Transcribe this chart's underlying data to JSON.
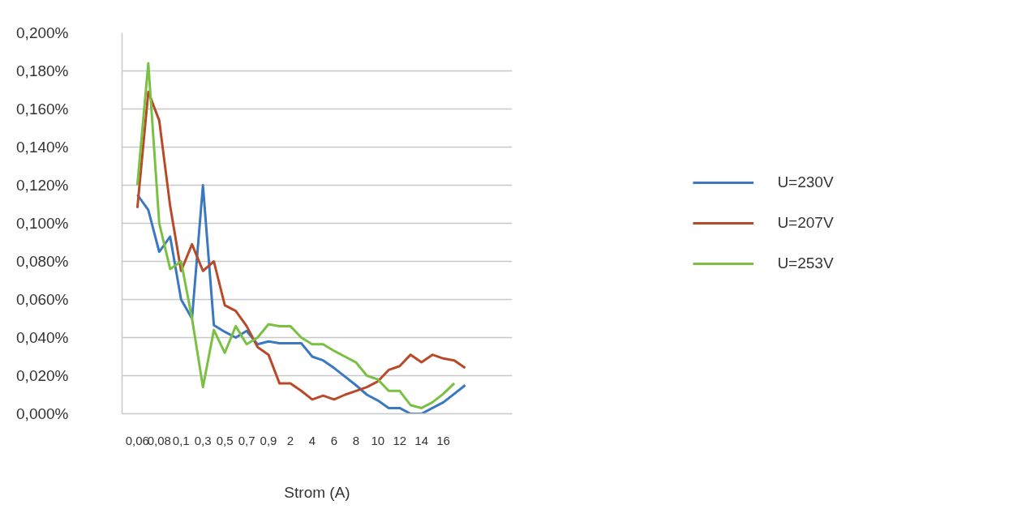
{
  "chart_data": {
    "type": "line",
    "xlabel": "Strom (A)",
    "ylim": [
      0,
      0.2
    ],
    "categories": [
      "0,06",
      null,
      "0,08",
      null,
      "0,1",
      null,
      "0,3",
      null,
      "0,5",
      null,
      "0,7",
      null,
      "0,9",
      null,
      "2",
      null,
      "4",
      null,
      "6",
      null,
      "8",
      null,
      "10",
      null,
      "12",
      null,
      "14",
      null,
      "16",
      null,
      null
    ],
    "yticks": [
      {
        "value": 0,
        "label": "0,000%"
      },
      {
        "value": 0.02,
        "label": "0,020%"
      },
      {
        "value": 0.04,
        "label": "0,040%"
      },
      {
        "value": 0.06,
        "label": "0,060%"
      },
      {
        "value": 0.08,
        "label": "0,080%"
      },
      {
        "value": 0.1,
        "label": "0,100%"
      },
      {
        "value": 0.12,
        "label": "0,120%"
      },
      {
        "value": 0.14,
        "label": "0,140%"
      },
      {
        "value": 0.16,
        "label": "0,160%"
      },
      {
        "value": 0.18,
        "label": "0,180%"
      },
      {
        "value": 0.2,
        "label": "0,200%"
      }
    ],
    "grid": "y",
    "legend": "right",
    "marker": "none",
    "line_style": "solid",
    "series": [
      {
        "name": "U=230V",
        "color": "#3a78c0",
        "values": [
          0.115,
          0.107,
          0.085,
          0.093,
          0.06,
          0.05,
          0.12,
          0.0465,
          0.043,
          0.04,
          0.0435,
          0.0365,
          0.038,
          0.037,
          0.037,
          0.037,
          0.03,
          0.028,
          0.024,
          0.0195,
          0.015,
          0.01,
          0.007,
          0.003,
          0.003,
          0,
          0,
          0.003,
          0.006,
          0.0105,
          0.015
        ]
      },
      {
        "name": "U=207V",
        "color": "#b84a2a",
        "values": [
          0.108,
          0.169,
          0.154,
          0.109,
          0.075,
          0.089,
          0.075,
          0.08,
          0.057,
          0.054,
          0.046,
          0.035,
          0.031,
          0.016,
          0.016,
          0.012,
          0.0075,
          0.0095,
          0.0075,
          0.01,
          0.012,
          0.014,
          0.017,
          0.023,
          0.025,
          0.031,
          0.027,
          0.031,
          0.029,
          0.028,
          0.024
        ]
      },
      {
        "name": "U=253V",
        "color": "#79c043",
        "values": [
          0.12,
          0.184,
          0.1,
          0.076,
          0.08,
          0.05,
          0.014,
          0.044,
          0.032,
          0.046,
          0.0365,
          0.04,
          0.047,
          0.046,
          0.046,
          0.04,
          0.0365,
          0.0365,
          0.033,
          0.03,
          0.027,
          0.02,
          0.018,
          0.012,
          0.012,
          0.0045,
          0.003,
          0.006,
          0.0105,
          0.016,
          null
        ]
      }
    ]
  }
}
